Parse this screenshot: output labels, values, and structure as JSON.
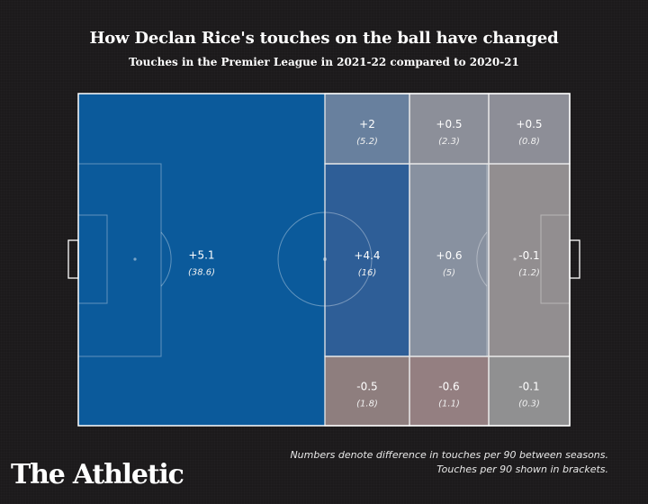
{
  "title": "How Declan Rice's touches on the ball have changed",
  "subtitle": "Touches in the Premier League in 2021-22 compared to 2020-21",
  "footnote": {
    "line1": "Numbers denote difference in touches per 90 between seasons.",
    "line2": "Touches per 90 shown in brackets."
  },
  "logo": "The Athletic",
  "chart_data": {
    "type": "heatmap",
    "title": "How Declan Rice's touches on the ball have changed",
    "subtitle": "Touches in the Premier League in 2021-22 compared to 2020-21",
    "zones": [
      {
        "zone": "own-half",
        "diff": "+5.1",
        "per90": "(38.6)",
        "color": "#0b5a9b"
      },
      {
        "zone": "mid-left",
        "diff": "+2",
        "per90": "(5.2)",
        "color": "#68809e"
      },
      {
        "zone": "mid-center",
        "diff": "+4.4",
        "per90": "(16)",
        "color": "#2e5e97"
      },
      {
        "zone": "mid-right",
        "diff": "-0.5",
        "per90": "(1.8)",
        "color": "#8e7e7e"
      },
      {
        "zone": "att-left",
        "diff": "+0.5",
        "per90": "(2.3)",
        "color": "#8c8f99"
      },
      {
        "zone": "att-center",
        "diff": "+0.6",
        "per90": "(5)",
        "color": "#8891a0"
      },
      {
        "zone": "att-right",
        "diff": "-0.6",
        "per90": "(1.1)",
        "color": "#947f81"
      },
      {
        "zone": "final-left",
        "diff": "+0.5",
        "per90": "(0.8)",
        "color": "#8d8e97"
      },
      {
        "zone": "final-center",
        "diff": "-0.1",
        "per90": "(1.2)",
        "color": "#928e90"
      },
      {
        "zone": "final-right",
        "diff": "-0.1",
        "per90": "(0.3)",
        "color": "#909091"
      }
    ]
  }
}
